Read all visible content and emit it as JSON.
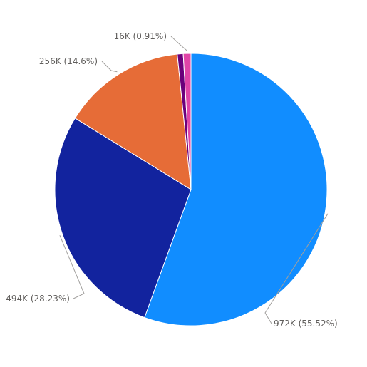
{
  "chart_data": {
    "type": "pie",
    "title": "",
    "legend": "none",
    "start_angle_deg": 0,
    "direction": "clockwise",
    "slices": [
      {
        "value": 972000,
        "percent": 55.52,
        "label": "972K (55.52%)",
        "color": "#118dff"
      },
      {
        "value": 494000,
        "percent": 28.23,
        "label": "494K (28.23%)",
        "color": "#12239e"
      },
      {
        "value": 256000,
        "percent": 14.6,
        "label": "256K (14.6%)",
        "color": "#e66c37"
      },
      {
        "value": 12000,
        "percent": 0.7,
        "label": "",
        "color": "#6b007b"
      },
      {
        "value": 16000,
        "percent": 0.91,
        "label": "16K (0.91%)",
        "color": "#e044a7"
      }
    ]
  }
}
